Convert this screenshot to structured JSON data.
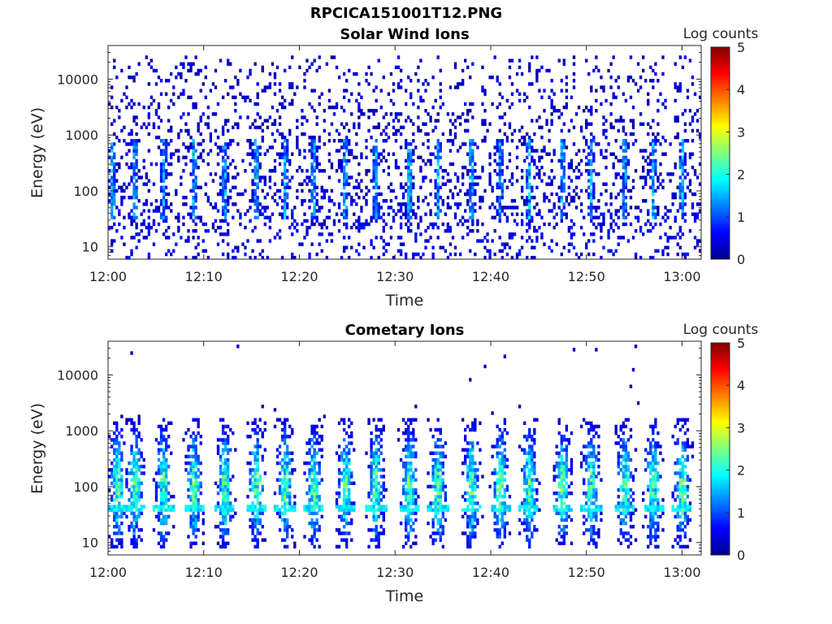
{
  "figure_title": "RPCICA151001T12.PNG",
  "chart_data": [
    {
      "type": "heatmap",
      "title": "Solar Wind Ions",
      "xlabel": "Time",
      "ylabel": "Energy (eV)",
      "x_ticks": [
        "12:00",
        "12:10",
        "12:20",
        "12:30",
        "12:40",
        "12:50",
        "13:00"
      ],
      "x_range_minutes": [
        0,
        62
      ],
      "y_scale": "log",
      "y_ticks": [
        10,
        100,
        1000,
        10000
      ],
      "y_tick_labels": [
        "10",
        "100",
        "1000",
        "10000"
      ],
      "y_range": [
        6,
        40000
      ],
      "colorbar": {
        "label": "Log counts",
        "range": [
          0,
          5
        ],
        "ticks": [
          "0",
          "1",
          "2",
          "3",
          "4",
          "5"
        ],
        "colormap": "jet"
      },
      "grid": false,
      "bursts_minutes": [
        0.5,
        2.8,
        5.8,
        9.0,
        12.2,
        15.5,
        18.5,
        21.5,
        24.8,
        28.0,
        31.5,
        34.5,
        38.0,
        41.0,
        44.0,
        47.5,
        50.5,
        54.0,
        57.0,
        60.0
      ],
      "counts_shown": "sparse low counts (log 0-1) from ~20 eV to ~30000 eV; periodic peaks up to log ~1.8 near 50-300 eV"
    },
    {
      "type": "heatmap",
      "title": "Cometary Ions",
      "xlabel": "Time",
      "ylabel": "Energy (eV)",
      "x_ticks": [
        "12:00",
        "12:10",
        "12:20",
        "12:30",
        "12:40",
        "12:50",
        "13:00"
      ],
      "x_range_minutes": [
        0,
        62
      ],
      "y_scale": "log",
      "y_ticks": [
        10,
        100,
        1000,
        10000
      ],
      "y_tick_labels": [
        "10",
        "100",
        "1000",
        "10000"
      ],
      "y_range": [
        6,
        40000
      ],
      "colorbar": {
        "label": "Log counts",
        "range": [
          0,
          5
        ],
        "ticks": [
          "0",
          "1",
          "2",
          "3",
          "4",
          "5"
        ],
        "colormap": "jet"
      },
      "grid": false,
      "bursts_minutes": [
        1.0,
        2.8,
        5.8,
        9.0,
        12.2,
        15.5,
        18.5,
        21.5,
        24.8,
        28.0,
        31.5,
        34.5,
        38.0,
        41.0,
        44.0,
        47.5,
        50.5,
        54.0,
        57.0,
        60.0
      ],
      "counts_shown": "periodic bursts from ~10 eV to ~1000 eV with peak log counts ~2.5 near 100 eV; a band at ~40 eV"
    }
  ]
}
